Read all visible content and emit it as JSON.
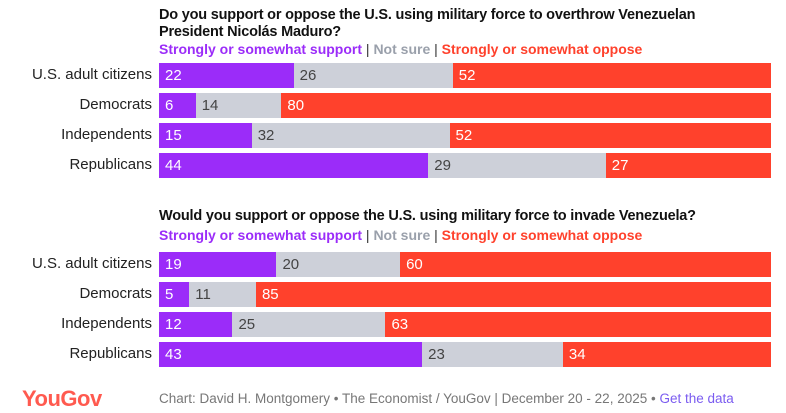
{
  "colors": {
    "support": "#9b2cf9",
    "not_sure": "#cdd0d9",
    "oppose": "#ff412c"
  },
  "chart_data": [
    {
      "type": "bar",
      "stacked": true,
      "orientation": "horizontal",
      "title": "Do you support or oppose the U.S. using military force to overthrow Venezuelan President Nicolás Maduro?",
      "legend": [
        "Strongly or somewhat support",
        "Not sure",
        "Strongly or somewhat oppose"
      ],
      "categories": [
        "U.S. adult citizens",
        "Democrats",
        "Independents",
        "Republicans"
      ],
      "series": [
        {
          "name": "Strongly or somewhat support",
          "values": [
            22,
            6,
            15,
            44
          ]
        },
        {
          "name": "Not sure",
          "values": [
            26,
            14,
            32,
            29
          ]
        },
        {
          "name": "Strongly or somewhat oppose",
          "values": [
            52,
            80,
            52,
            27
          ]
        }
      ]
    },
    {
      "type": "bar",
      "stacked": true,
      "orientation": "horizontal",
      "title": "Would you support or oppose the U.S. using military force to invade Venezuela?",
      "legend": [
        "Strongly or somewhat support",
        "Not sure",
        "Strongly or somewhat oppose"
      ],
      "categories": [
        "U.S. adult citizens",
        "Democrats",
        "Independents",
        "Republicans"
      ],
      "series": [
        {
          "name": "Strongly or somewhat support",
          "values": [
            19,
            5,
            12,
            43
          ]
        },
        {
          "name": "Not sure",
          "values": [
            20,
            11,
            25,
            23
          ]
        },
        {
          "name": "Strongly or somewhat oppose",
          "values": [
            60,
            85,
            63,
            34
          ]
        }
      ]
    }
  ],
  "legend_sep": "|",
  "footer": {
    "logo": "YouGov",
    "credit": "Chart: David H. Montgomery • The Economist / YouGov | December 20 - 22, 2025 • ",
    "link": "Get the data"
  }
}
